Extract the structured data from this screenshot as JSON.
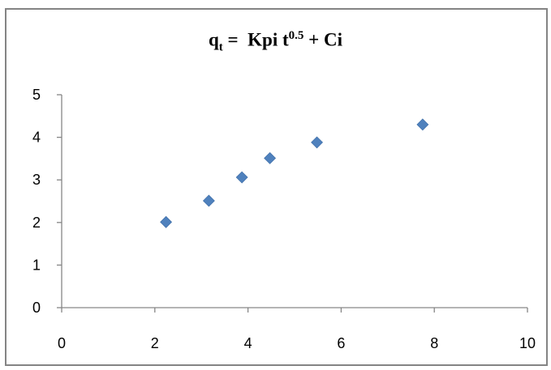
{
  "chart_data": {
    "type": "scatter",
    "title": {
      "q": "q",
      "t_sub": "t",
      "eq": " =  Kpi t",
      "exp": "0.5",
      "tail": " + Ci"
    },
    "xlabel": "",
    "ylabel": "",
    "xlim": [
      0,
      10
    ],
    "ylim": [
      0,
      5
    ],
    "x_ticks": [
      "0",
      "2",
      "4",
      "6",
      "8",
      "10"
    ],
    "y_ticks": [
      "0",
      "1",
      "2",
      "3",
      "4",
      "5"
    ],
    "grid": false,
    "legend": "none",
    "marker": "diamond",
    "series": [
      {
        "color": "#4F81BD",
        "points": [
          {
            "x": 2.24,
            "y": 2.01
          },
          {
            "x": 3.16,
            "y": 2.51
          },
          {
            "x": 3.87,
            "y": 3.06
          },
          {
            "x": 4.47,
            "y": 3.51
          },
          {
            "x": 5.48,
            "y": 3.88
          },
          {
            "x": 7.75,
            "y": 4.3
          }
        ]
      }
    ]
  }
}
